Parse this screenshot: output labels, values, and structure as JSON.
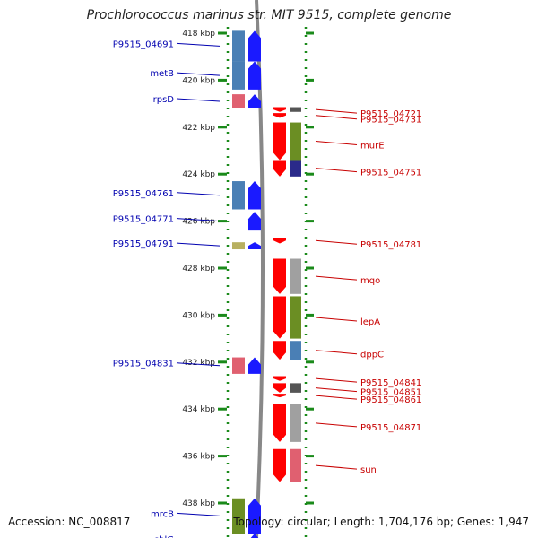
{
  "title": "Prochlorococcus marinus str. MIT 9515, complete genome",
  "footer": {
    "accession": "Accession: NC_008817",
    "topology": "Topology: circular; Length: 1,704,176 bp; Genes: 1,947"
  },
  "ruler": {
    "ticks": [
      {
        "kbp": 418,
        "label": "418 kbp"
      },
      {
        "kbp": 420,
        "label": "420 kbp"
      },
      {
        "kbp": 422,
        "label": "422 kbp"
      },
      {
        "kbp": 424,
        "label": "424 kbp"
      },
      {
        "kbp": 426,
        "label": "426 kbp"
      },
      {
        "kbp": 428,
        "label": "428 kbp"
      },
      {
        "kbp": 430,
        "label": "430 kbp"
      },
      {
        "kbp": 432,
        "label": "432 kbp"
      },
      {
        "kbp": 434,
        "label": "434 kbp"
      },
      {
        "kbp": 436,
        "label": "436 kbp"
      },
      {
        "kbp": 438,
        "label": "438 kbp"
      }
    ]
  },
  "genes_left": [
    {
      "label": "P9515_04691",
      "start": 417.9,
      "end": 419.2,
      "cog_color": "#4a7fb5",
      "arrow_color": "#1a1aff"
    },
    {
      "label": "metB",
      "start": 419.2,
      "end": 420.4,
      "cog_color": "#4a7fb5",
      "arrow_color": "#1a1aff"
    },
    {
      "label": "rpsD",
      "start": 420.6,
      "end": 421.2,
      "cog_color": "#e06070",
      "arrow_color": "#1a1aff"
    },
    {
      "label": "P9515_04761",
      "start": 424.3,
      "end": 425.5,
      "cog_color": "#4a7fb5",
      "arrow_color": "#1a1aff"
    },
    {
      "label": "P9515_04771",
      "start": 425.6,
      "end": 426.4,
      "cog_color": "",
      "arrow_color": "#1a1aff"
    },
    {
      "label": "P9515_04791",
      "start": 426.9,
      "end": 427.2,
      "cog_color": "#b8b060",
      "arrow_color": "#1a1aff"
    },
    {
      "label": "P9515_04831",
      "start": 431.8,
      "end": 432.5,
      "cog_color": "#e06070",
      "arrow_color": "#1a1aff"
    },
    {
      "label": "mrcB",
      "start": 437.8,
      "end": 439.3,
      "cog_color": "#6b8e23",
      "arrow_color": "#1a1aff"
    },
    {
      "label": "chlG",
      "start": 439.3,
      "end": 440.0,
      "cog_color": "",
      "arrow_color": "#1a1aff"
    }
  ],
  "genes_right": [
    {
      "label": "P9515_04721",
      "start": 421.15,
      "end": 421.35,
      "cog_color": "#555555",
      "arrow_color": "#ff0000"
    },
    {
      "label": "P9515_04731",
      "start": 421.4,
      "end": 421.6,
      "cog_color": "",
      "arrow_color": "#ff0000"
    },
    {
      "label": "murE",
      "start": 421.8,
      "end": 423.4,
      "cog_color": "#6b8e23",
      "arrow_color": "#ff0000"
    },
    {
      "label": "P9515_04751",
      "start": 423.4,
      "end": 424.1,
      "cog_color": "#2a2a8a",
      "arrow_color": "#ff0000"
    },
    {
      "label": "P9515_04781",
      "start": 426.7,
      "end": 426.95,
      "cog_color": "",
      "arrow_color": "#ff0000"
    },
    {
      "label": "mqo",
      "start": 427.6,
      "end": 429.1,
      "cog_color": "#a0a0a0",
      "arrow_color": "#ff0000"
    },
    {
      "label": "lepA",
      "start": 429.2,
      "end": 431.0,
      "cog_color": "#6b8e23",
      "arrow_color": "#ff0000"
    },
    {
      "label": "dppC",
      "start": 431.1,
      "end": 431.9,
      "cog_color": "#4a7fb5",
      "arrow_color": "#ff0000"
    },
    {
      "label": "P9515_04841",
      "start": 432.6,
      "end": 432.8,
      "cog_color": "",
      "arrow_color": "#ff0000"
    },
    {
      "label": "P9515_04851",
      "start": 432.9,
      "end": 433.3,
      "cog_color": "#555555",
      "arrow_color": "#ff0000"
    },
    {
      "label": "P9515_04861",
      "start": 433.35,
      "end": 433.5,
      "cog_color": "",
      "arrow_color": "#ff0000"
    },
    {
      "label": "P9515_04871",
      "start": 433.8,
      "end": 435.4,
      "cog_color": "#a0a0a0",
      "arrow_color": "#ff0000"
    },
    {
      "label": "sun",
      "start": 435.7,
      "end": 437.1,
      "cog_color": "#e06070",
      "arrow_color": "#ff0000"
    }
  ],
  "colors": {
    "forward_strand": "#1a1aff",
    "reverse_strand": "#ff0000",
    "left_label": "#0000b0",
    "right_label": "#c80000",
    "ruler": "#1a8a1a",
    "backbone": "#888888"
  }
}
